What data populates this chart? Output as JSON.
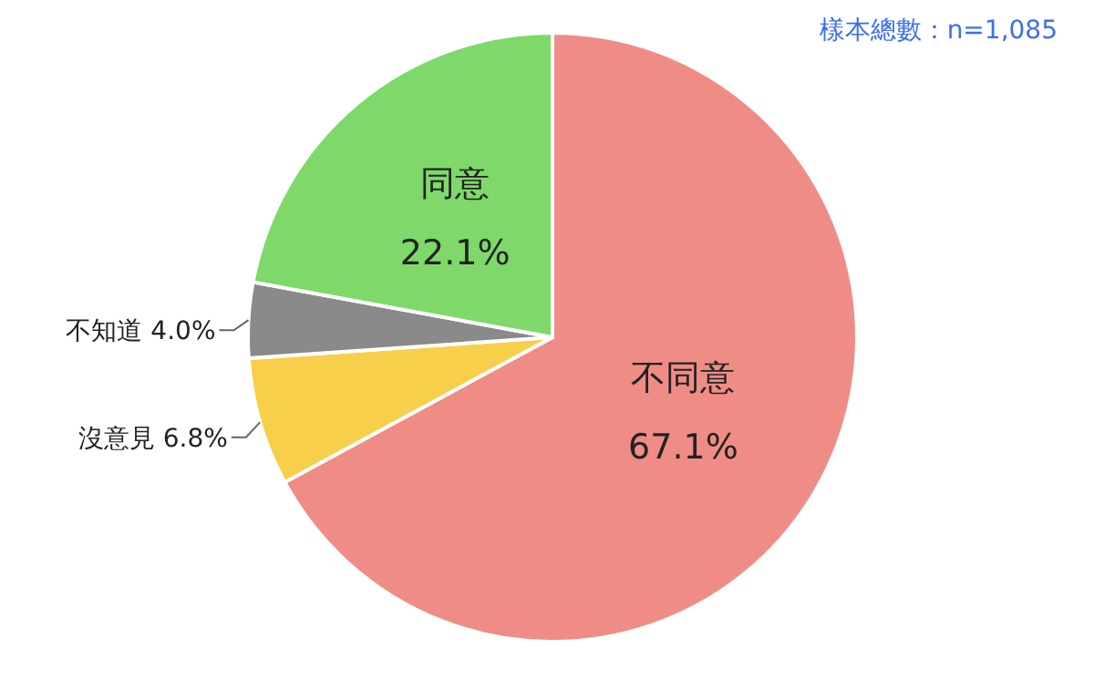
{
  "chart_data": {
    "type": "pie",
    "categories": [
      "不同意",
      "沒意見",
      "不知道",
      "同意"
    ],
    "values": [
      67.1,
      6.8,
      4.0,
      22.1
    ],
    "colors": [
      "#f08c86",
      "#f7cf4a",
      "#8a8a8a",
      "#7ed96a"
    ],
    "value_labels": [
      "67.1%",
      "6.8%",
      "4.0%",
      "22.1%"
    ],
    "annotations": [
      "樣本總數：n=1,085"
    ],
    "legend": false
  }
}
